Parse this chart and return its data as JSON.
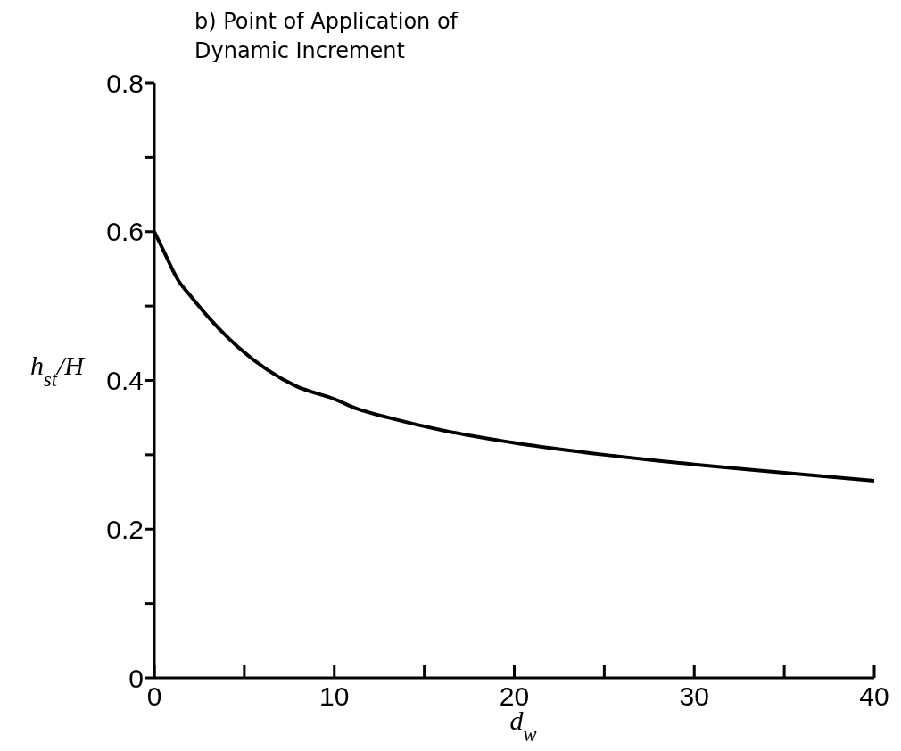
{
  "chart_data": {
    "type": "line",
    "title": "b) Point of Application of Dynamic Increment",
    "xlabel": "d$_{w}$",
    "ylabel": "h$_{st}$/H",
    "x": [
      0,
      0.5,
      1.34,
      2,
      2.97,
      4.6,
      6.3,
      7.9,
      10,
      11.25,
      13,
      16.2,
      20,
      25,
      30,
      35,
      40
    ],
    "series": [
      {
        "color": "#000000",
        "values": [
          0.6,
          0.575,
          0.534,
          0.514,
          0.486,
          0.446,
          0.414,
          0.392,
          0.375,
          0.362,
          0.35,
          0.332,
          0.316,
          0.3,
          0.287,
          0.276,
          0.265
        ]
      }
    ],
    "xlim": [
      0,
      40
    ],
    "ylim": [
      0,
      0.8
    ],
    "xticks": [
      0,
      {
        "value": 5,
        "label": null
      },
      10,
      {
        "value": 15,
        "label": null
      },
      20,
      {
        "value": 25,
        "label": null
      },
      30,
      {
        "value": 35,
        "label": null
      },
      40
    ],
    "yticks": [
      0,
      {
        "value": 0.1,
        "label": null
      },
      0.2,
      {
        "value": 0.3,
        "label": null
      },
      0.4,
      {
        "value": 0.5,
        "label": null
      },
      0.6,
      {
        "value": 0.7,
        "label": null
      },
      0.8
    ],
    "grid": false,
    "legend": false,
    "marker": "none",
    "line_style": "solid"
  }
}
